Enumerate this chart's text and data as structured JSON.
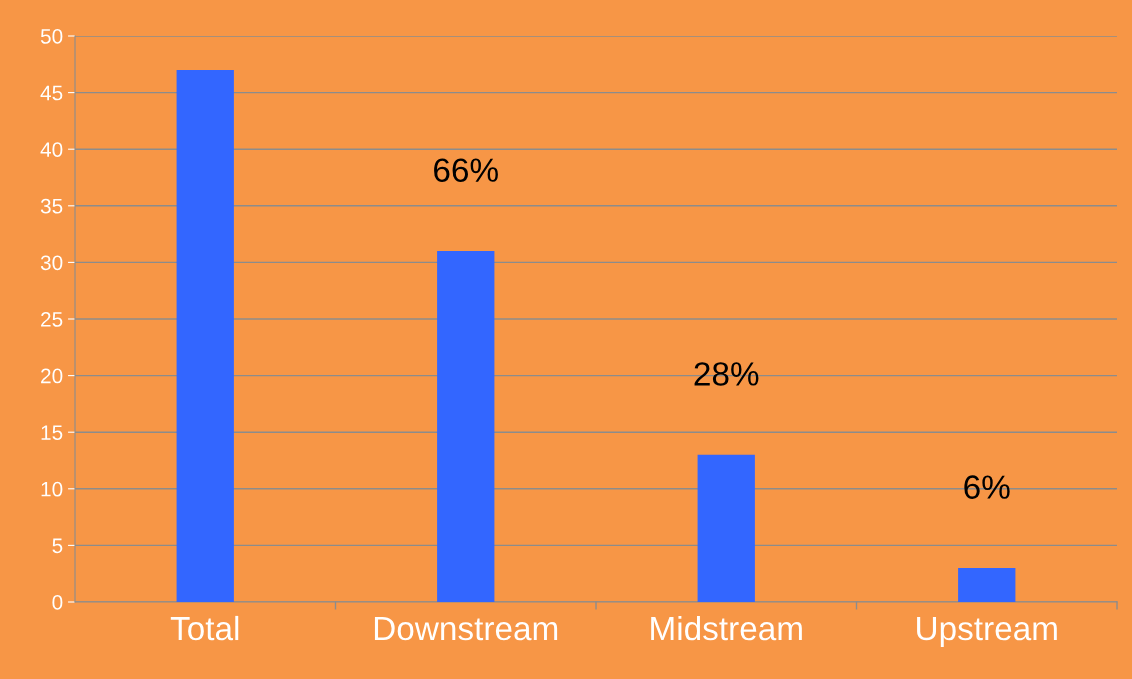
{
  "chart_data": {
    "type": "bar",
    "categories": [
      "Total",
      "Downstream",
      "Midstream",
      "Upstream"
    ],
    "values": [
      47,
      31,
      13,
      3
    ],
    "color": "#3366ff",
    "ylim": [
      0,
      50
    ],
    "yticks": [
      0,
      5,
      10,
      15,
      20,
      25,
      30,
      35,
      40,
      45,
      50
    ],
    "grid": "y",
    "legend": false,
    "annotations": [
      "66%",
      "28%",
      "6%"
    ]
  }
}
